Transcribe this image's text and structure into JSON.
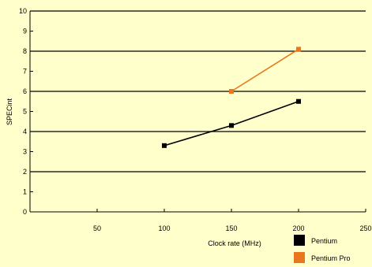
{
  "chart_data": {
    "type": "line",
    "title": "",
    "xlabel": "Clock rate (MHz)",
    "ylabel": "SPECint",
    "xlim": [
      0,
      250
    ],
    "ylim": [
      0,
      10
    ],
    "x_ticks": [
      50,
      100,
      150,
      200,
      250
    ],
    "y_ticks": [
      0,
      1,
      2,
      3,
      4,
      5,
      6,
      7,
      8,
      9,
      10
    ],
    "grid": "horizontal major lines at even values",
    "legend_position": "bottom-right",
    "series": [
      {
        "name": "Pentium",
        "color": "#000000",
        "x": [
          100,
          150,
          200
        ],
        "y": [
          3.3,
          4.3,
          5.5
        ]
      },
      {
        "name": "Pentium Pro",
        "color": "#E8771E",
        "x": [
          150,
          200
        ],
        "y": [
          6.0,
          8.1
        ]
      }
    ]
  },
  "colors": {
    "background": "#FFFFCC",
    "axis": "#000000"
  }
}
